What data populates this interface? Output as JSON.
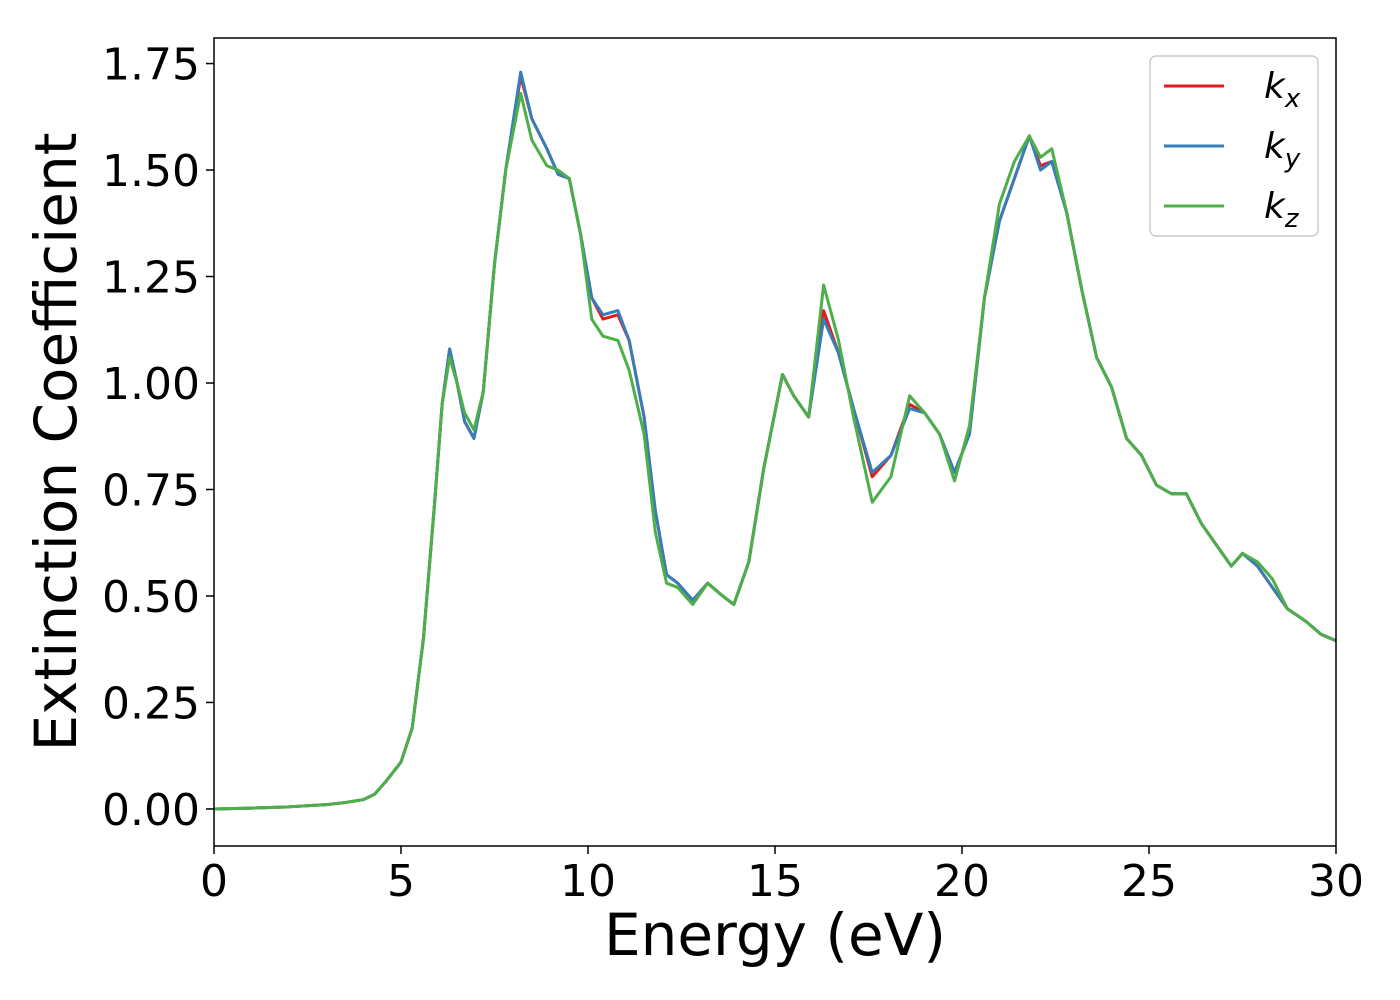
{
  "chart_data": {
    "type": "line",
    "xlabel": "Energy (eV)",
    "ylabel": "Extinction Coefficient",
    "x": [
      0,
      1,
      2,
      3,
      3.5,
      4,
      4.3,
      4.6,
      5,
      5.3,
      5.6,
      5.9,
      6.1,
      6.3,
      6.5,
      6.7,
      6.95,
      7.2,
      7.5,
      7.8,
      8.2,
      8.5,
      8.9,
      9.2,
      9.5,
      9.8,
      10.1,
      10.4,
      10.8,
      11.1,
      11.5,
      11.8,
      12.1,
      12.4,
      12.8,
      13.2,
      13.6,
      13.9,
      14.3,
      14.7,
      15.2,
      15.5,
      15.9,
      16.3,
      16.7,
      17.1,
      17.6,
      18.1,
      18.6,
      19.0,
      19.4,
      19.8,
      20.2,
      20.6,
      21.0,
      21.4,
      21.8,
      22.1,
      22.4,
      22.8,
      23.2,
      23.6,
      24.0,
      24.4,
      24.8,
      25.2,
      25.6,
      26.0,
      26.4,
      26.8,
      27.2,
      27.5,
      27.9,
      28.3,
      28.7,
      29.2,
      29.6,
      30
    ],
    "series": [
      {
        "name": "kx",
        "color": "#e41a1c",
        "values": [
          0,
          0.002,
          0.005,
          0.01,
          0.015,
          0.022,
          0.035,
          0.065,
          0.11,
          0.19,
          0.4,
          0.72,
          0.95,
          1.08,
          1.0,
          0.91,
          0.87,
          0.98,
          1.28,
          1.5,
          1.72,
          1.62,
          1.55,
          1.49,
          1.48,
          1.35,
          1.2,
          1.15,
          1.16,
          1.1,
          0.92,
          0.7,
          0.55,
          0.53,
          0.49,
          0.53,
          0.5,
          0.48,
          0.58,
          0.8,
          1.02,
          0.97,
          0.92,
          1.17,
          1.07,
          0.94,
          0.78,
          0.83,
          0.95,
          0.93,
          0.88,
          0.79,
          0.88,
          1.2,
          1.38,
          1.48,
          1.58,
          1.51,
          1.52,
          1.4,
          1.22,
          1.06,
          0.99,
          0.87,
          0.83,
          0.76,
          0.74,
          0.74,
          0.67,
          0.62,
          0.57,
          0.6,
          0.57,
          0.52,
          0.47,
          0.44,
          0.41,
          0.395
        ]
      },
      {
        "name": "ky",
        "color": "#377eb8",
        "values": [
          0,
          0.002,
          0.005,
          0.01,
          0.015,
          0.022,
          0.035,
          0.065,
          0.11,
          0.19,
          0.4,
          0.72,
          0.95,
          1.08,
          1.0,
          0.91,
          0.87,
          0.98,
          1.28,
          1.5,
          1.73,
          1.62,
          1.55,
          1.49,
          1.48,
          1.35,
          1.2,
          1.16,
          1.17,
          1.1,
          0.92,
          0.7,
          0.55,
          0.53,
          0.49,
          0.53,
          0.5,
          0.48,
          0.58,
          0.8,
          1.02,
          0.97,
          0.92,
          1.15,
          1.07,
          0.94,
          0.79,
          0.83,
          0.94,
          0.93,
          0.88,
          0.79,
          0.88,
          1.2,
          1.38,
          1.48,
          1.58,
          1.5,
          1.52,
          1.4,
          1.22,
          1.06,
          0.99,
          0.87,
          0.83,
          0.76,
          0.74,
          0.74,
          0.67,
          0.62,
          0.57,
          0.6,
          0.57,
          0.52,
          0.47,
          0.44,
          0.41,
          0.395
        ]
      },
      {
        "name": "kz",
        "color": "#4daf4a",
        "values": [
          0,
          0.002,
          0.005,
          0.01,
          0.015,
          0.022,
          0.035,
          0.065,
          0.11,
          0.19,
          0.4,
          0.72,
          0.95,
          1.06,
          1.0,
          0.93,
          0.89,
          0.98,
          1.28,
          1.5,
          1.68,
          1.57,
          1.51,
          1.5,
          1.48,
          1.35,
          1.15,
          1.11,
          1.1,
          1.03,
          0.88,
          0.65,
          0.53,
          0.52,
          0.48,
          0.53,
          0.5,
          0.48,
          0.58,
          0.8,
          1.02,
          0.97,
          0.92,
          1.23,
          1.1,
          0.92,
          0.72,
          0.78,
          0.97,
          0.93,
          0.88,
          0.77,
          0.9,
          1.2,
          1.42,
          1.52,
          1.58,
          1.53,
          1.55,
          1.4,
          1.22,
          1.06,
          0.99,
          0.87,
          0.83,
          0.76,
          0.74,
          0.74,
          0.67,
          0.62,
          0.57,
          0.6,
          0.58,
          0.54,
          0.47,
          0.44,
          0.41,
          0.395
        ]
      }
    ],
    "xlim": [
      0,
      30
    ],
    "xticks": [
      0,
      5,
      10,
      15,
      20,
      25,
      30
    ],
    "ylim": [
      -0.087,
      1.81
    ],
    "yticks": [
      {
        "value": 0,
        "label": "0.00"
      },
      {
        "value": 0.25,
        "label": "0.25"
      },
      {
        "value": 0.5,
        "label": "0.50"
      },
      {
        "value": 0.75,
        "label": "0.75"
      },
      {
        "value": 1,
        "label": "1.00"
      },
      {
        "value": 1.25,
        "label": "1.25"
      },
      {
        "value": 1.5,
        "label": "1.50"
      },
      {
        "value": 1.75,
        "label": "1.75"
      }
    ],
    "legend": "upper right",
    "grid": false
  }
}
